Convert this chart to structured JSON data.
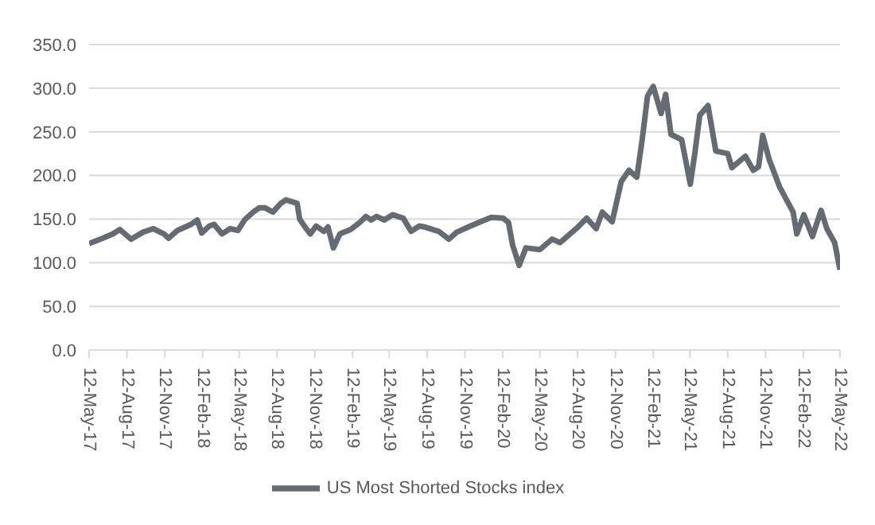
{
  "chart_data": {
    "type": "line",
    "x": [
      "2017-05-12",
      "2017-06-14",
      "2017-07-09",
      "2017-07-26",
      "2017-08-22",
      "2017-09-20",
      "2017-10-15",
      "2017-11-10",
      "2017-11-21",
      "2017-12-13",
      "2018-01-15",
      "2018-01-30",
      "2018-02-10",
      "2018-02-28",
      "2018-03-12",
      "2018-03-31",
      "2018-04-20",
      "2018-05-09",
      "2018-05-25",
      "2018-06-15",
      "2018-06-30",
      "2018-07-13",
      "2018-08-02",
      "2018-08-21",
      "2018-09-03",
      "2018-09-30",
      "2018-10-06",
      "2018-10-19",
      "2018-11-01",
      "2018-11-15",
      "2018-12-04",
      "2018-12-14",
      "2018-12-27",
      "2019-01-12",
      "2019-02-07",
      "2019-03-01",
      "2019-03-16",
      "2019-03-29",
      "2019-04-11",
      "2019-04-30",
      "2019-05-20",
      "2019-06-15",
      "2019-07-04",
      "2019-07-24",
      "2019-08-06",
      "2019-09-09",
      "2019-10-04",
      "2019-10-23",
      "2019-11-25",
      "2019-12-20",
      "2020-01-15",
      "2020-02-13",
      "2020-02-26",
      "2020-03-07",
      "2020-03-23",
      "2020-04-08",
      "2020-05-12",
      "2020-06-11",
      "2020-06-30",
      "2020-08-13",
      "2020-09-03",
      "2020-09-26",
      "2020-10-11",
      "2020-11-04",
      "2020-11-26",
      "2020-12-15",
      "2021-01-03",
      "2021-01-16",
      "2021-01-29",
      "2021-02-12",
      "2021-03-03",
      "2021-03-14",
      "2021-03-27",
      "2021-04-22",
      "2021-05-13",
      "2021-05-23",
      "2021-06-05",
      "2021-06-25",
      "2021-07-14",
      "2021-08-12",
      "2021-08-22",
      "2021-09-24",
      "2021-10-13",
      "2021-10-26",
      "2021-11-05",
      "2021-11-21",
      "2021-12-16",
      "2022-01-18",
      "2022-01-27",
      "2022-02-13",
      "2022-03-06",
      "2022-03-27",
      "2022-04-10",
      "2022-04-29",
      "2022-05-12"
    ],
    "series": [
      {
        "name": "US Most Shorted Stocks index",
        "color": "#646b73",
        "values": [
          122,
          128,
          133,
          138,
          127,
          135,
          139,
          133,
          128,
          137,
          144,
          149,
          134,
          142,
          144,
          133,
          139,
          137,
          149,
          158,
          163,
          163,
          158,
          168,
          172,
          168,
          150,
          141,
          133,
          142,
          136,
          141,
          117,
          133,
          138,
          146,
          153,
          149,
          153,
          149,
          155,
          151,
          136,
          142,
          141,
          136,
          127,
          135,
          142,
          147,
          152,
          151,
          146,
          120,
          97,
          117,
          115,
          127,
          123,
          141,
          151,
          139,
          158,
          147,
          193,
          206,
          198,
          241,
          291,
          302,
          271,
          293,
          247,
          241,
          190,
          222,
          269,
          280,
          228,
          225,
          209,
          222,
          206,
          210,
          246,
          218,
          187,
          158,
          133,
          155,
          130,
          160,
          139,
          123,
          92
        ]
      }
    ],
    "xlim": [
      "2017-05-12",
      "2022-05-12"
    ],
    "xticks": [
      {
        "value": "2017-05-12",
        "label": "12-May-17"
      },
      {
        "value": "2017-08-12",
        "label": "12-Aug-17"
      },
      {
        "value": "2017-11-12",
        "label": "12-Nov-17"
      },
      {
        "value": "2018-02-12",
        "label": "12-Feb-18"
      },
      {
        "value": "2018-05-12",
        "label": "12-May-18"
      },
      {
        "value": "2018-08-12",
        "label": "12-Aug-18"
      },
      {
        "value": "2018-11-12",
        "label": "12-Nov-18"
      },
      {
        "value": "2019-02-12",
        "label": "12-Feb-19"
      },
      {
        "value": "2019-05-12",
        "label": "12-May-19"
      },
      {
        "value": "2019-08-12",
        "label": "12-Aug-19"
      },
      {
        "value": "2019-11-12",
        "label": "12-Nov-19"
      },
      {
        "value": "2020-02-12",
        "label": "12-Feb-20"
      },
      {
        "value": "2020-05-12",
        "label": "12-May-20"
      },
      {
        "value": "2020-08-12",
        "label": "12-Aug-20"
      },
      {
        "value": "2020-11-12",
        "label": "12-Nov-20"
      },
      {
        "value": "2021-02-12",
        "label": "12-Feb-21"
      },
      {
        "value": "2021-05-12",
        "label": "12-May-21"
      },
      {
        "value": "2021-08-12",
        "label": "12-Aug-21"
      },
      {
        "value": "2021-11-12",
        "label": "12-Nov-21"
      },
      {
        "value": "2022-02-12",
        "label": "12-Feb-22"
      },
      {
        "value": "2022-05-12",
        "label": "12-May-22"
      }
    ],
    "ylim": [
      0,
      350
    ],
    "yticks": [
      {
        "value": 0,
        "label": "0.0"
      },
      {
        "value": 50,
        "label": "50.0"
      },
      {
        "value": 100,
        "label": "100.0"
      },
      {
        "value": 150,
        "label": "150.0"
      },
      {
        "value": 200,
        "label": "200.0"
      },
      {
        "value": 250,
        "label": "250.0"
      },
      {
        "value": 300,
        "label": "300.0"
      },
      {
        "value": 350,
        "label": "350.0"
      }
    ],
    "grid": "y",
    "legend": "bottom",
    "marker": "none",
    "line_style": "solid"
  }
}
